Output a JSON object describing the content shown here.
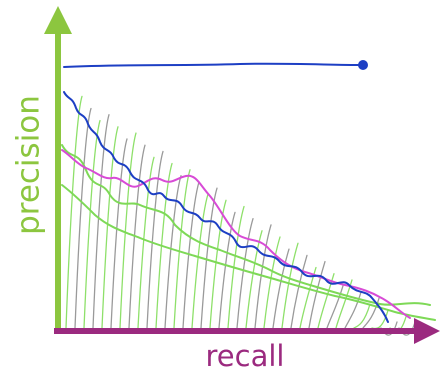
{
  "axes": {
    "y_label": "precision",
    "x_label": "recall"
  }
}
